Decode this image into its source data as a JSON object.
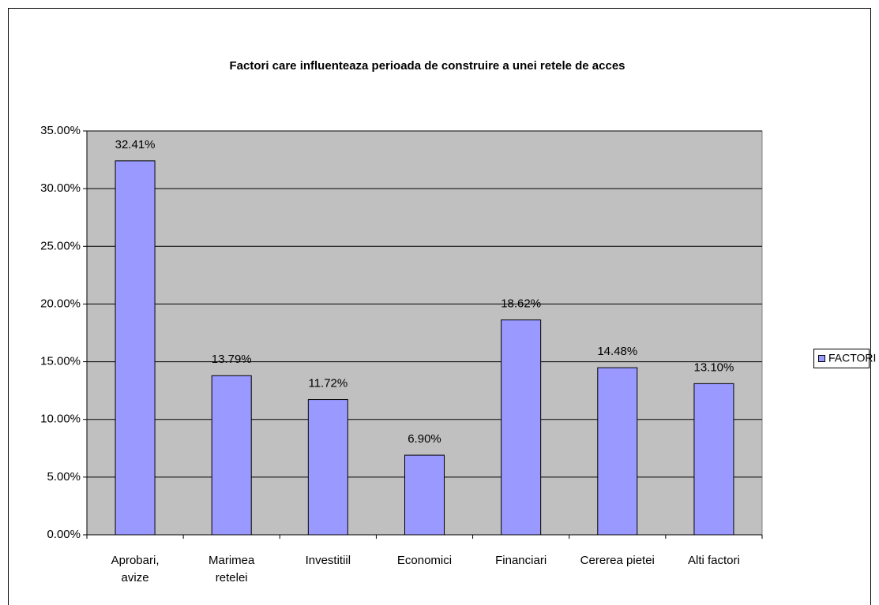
{
  "chart_data": {
    "type": "bar",
    "title": "Factori care influenteaza perioada de construire a unei retele de acces",
    "categories": [
      "Aprobari, avize",
      "Marimea retelei",
      "Investitiil",
      "Economici",
      "Financiari",
      "Cererea pietei",
      "Alti factori"
    ],
    "series": [
      {
        "name": "FACTORI",
        "color": "#9999ff",
        "values": [
          32.41,
          13.79,
          11.72,
          6.9,
          18.62,
          14.48,
          13.1
        ],
        "value_labels": [
          "32.41%",
          "13.79%",
          "11.72%",
          "6.90%",
          "18.62%",
          "14.48%",
          "13.10%"
        ]
      }
    ],
    "ylim": [
      0,
      35
    ],
    "yticks": [
      {
        "value": 0,
        "label": "0.00%"
      },
      {
        "value": 5,
        "label": "5.00%"
      },
      {
        "value": 10,
        "label": "10.00%"
      },
      {
        "value": 15,
        "label": "15.00%"
      },
      {
        "value": 20,
        "label": "20.00%"
      },
      {
        "value": 25,
        "label": "25.00%"
      },
      {
        "value": 30,
        "label": "30.00%"
      },
      {
        "value": 35,
        "label": "35.00%"
      }
    ],
    "grid": true,
    "legend": "right"
  }
}
